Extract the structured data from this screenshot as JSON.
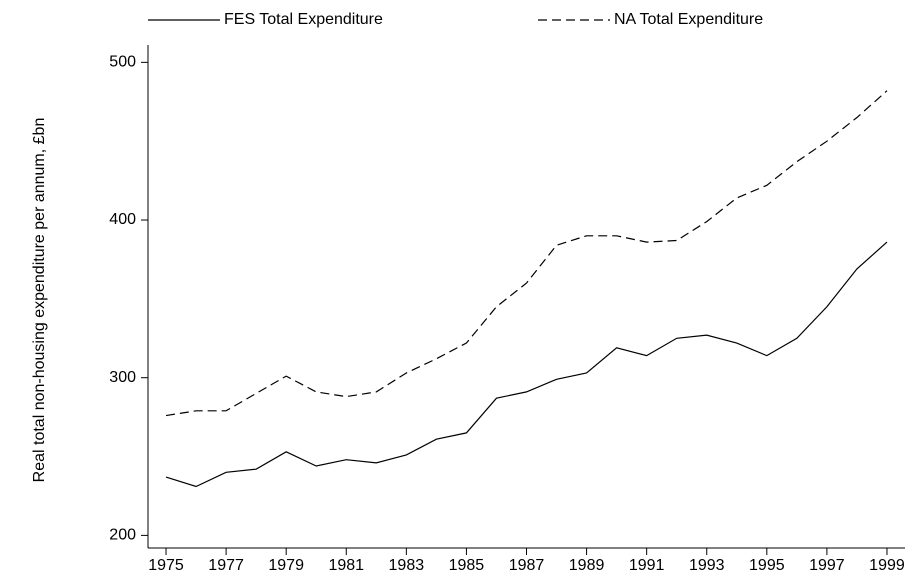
{
  "chart_data": {
    "type": "line",
    "y_label": "Real total non-housing expenditure per annum, £bn",
    "x": [
      1975,
      1976,
      1977,
      1978,
      1979,
      1980,
      1981,
      1982,
      1983,
      1984,
      1985,
      1986,
      1987,
      1988,
      1989,
      1990,
      1991,
      1992,
      1993,
      1994,
      1995,
      1996,
      1997,
      1998,
      1999
    ],
    "series": [
      {
        "name": "FES Total Expenditure",
        "color": "#000000",
        "dash": "solid",
        "values": [
          237,
          231,
          240,
          242,
          253,
          244,
          248,
          246,
          251,
          261,
          265,
          287,
          291,
          299,
          303,
          319,
          314,
          325,
          327,
          322,
          314,
          325,
          345,
          369,
          386
        ]
      },
      {
        "name": "NA Total Expenditure",
        "color": "#000000",
        "dash": "dashed",
        "values": [
          276,
          279,
          279,
          290,
          301,
          291,
          288,
          291,
          303,
          312,
          322,
          345,
          360,
          384,
          390,
          390,
          386,
          387,
          399,
          414,
          422,
          437,
          450,
          465,
          482
        ]
      }
    ],
    "xlim": [
      1974.4,
      1999.6
    ],
    "xticks": [
      1975,
      1977,
      1979,
      1981,
      1983,
      1985,
      1987,
      1989,
      1991,
      1993,
      1995,
      1997,
      1999
    ],
    "ylim": [
      192,
      511
    ],
    "yticks": [
      200,
      300,
      400,
      500
    ],
    "grid": false,
    "legend": "top"
  }
}
